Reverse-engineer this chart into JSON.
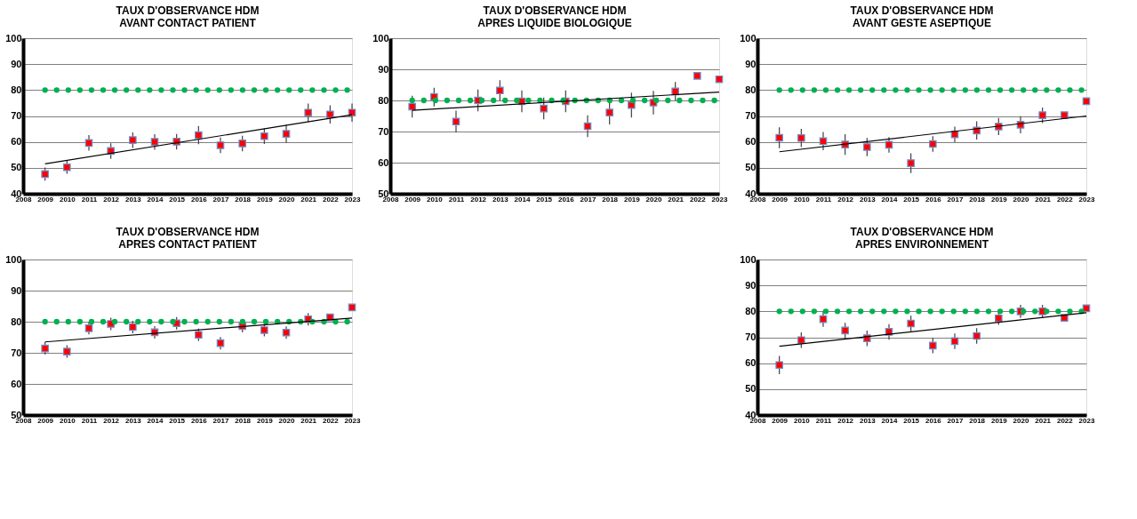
{
  "chart_data": [
    {
      "type": "scatter",
      "title": "TAUX D'OBSERVANCE HDM",
      "subtitle": "AVANT CONTACT PATIENT",
      "x": [
        2009,
        2010,
        2011,
        2012,
        2013,
        2014,
        2015,
        2016,
        2017,
        2018,
        2019,
        2020,
        2021,
        2022,
        2023
      ],
      "xlim": [
        2008,
        2023
      ],
      "xticks": [
        2008,
        2009,
        2010,
        2011,
        2012,
        2013,
        2014,
        2015,
        2016,
        2017,
        2018,
        2019,
        2020,
        2021,
        2022,
        2023
      ],
      "ylim": [
        40,
        100
      ],
      "yticks": [
        40,
        50,
        60,
        70,
        80,
        90,
        100
      ],
      "grid": "y",
      "legend": false,
      "series": [
        {
          "type": "scatter",
          "marker": "square",
          "color": "#ff0000",
          "values": [
            47.6,
            50.2,
            59.6,
            56.5,
            60.7,
            60.0,
            60.1,
            62.6,
            58.7,
            59.4,
            62.2,
            63.1,
            71.3,
            70.6,
            71.3
          ],
          "errors": [
            2.5,
            2.5,
            3,
            3,
            3,
            3,
            3,
            3.5,
            3,
            3,
            3,
            3.5,
            3.5,
            3.5,
            3.5
          ]
        },
        {
          "type": "scatter",
          "marker": "circle",
          "color": "#00b050",
          "x": [
            2009,
            2009.53,
            2010.06,
            2010.59,
            2011.12,
            2011.65,
            2012.18,
            2012.71,
            2013.24,
            2013.77,
            2014.3,
            2014.83,
            2015.36,
            2015.89,
            2016.42,
            2016.95,
            2017.48,
            2018.01,
            2018.54,
            2019.07,
            2019.6,
            2020.13,
            2020.66,
            2021.19,
            2021.72,
            2022.25,
            2022.78
          ],
          "values": [
            80,
            80,
            80,
            80,
            80,
            80,
            80,
            80,
            80,
            80,
            80,
            80,
            80,
            80,
            80,
            80,
            80,
            80,
            80,
            80,
            80,
            80,
            80,
            80,
            80,
            80,
            80
          ]
        },
        {
          "type": "line",
          "color": "#000000",
          "x": [
            2009,
            2023
          ],
          "values": [
            51.5,
            70.5
          ]
        }
      ]
    },
    {
      "type": "scatter",
      "title": "TAUX D'OBSERVANCE HDM",
      "subtitle": "APRES CONTACT PATIENT",
      "x": [
        2009,
        2010,
        2011,
        2012,
        2013,
        2014,
        2015,
        2016,
        2017,
        2018,
        2019,
        2020,
        2021,
        2022,
        2023
      ],
      "xlim": [
        2008,
        2023
      ],
      "xticks": [
        2008,
        2009,
        2010,
        2011,
        2012,
        2013,
        2014,
        2015,
        2016,
        2017,
        2018,
        2019,
        2020,
        2021,
        2022,
        2023
      ],
      "ylim": [
        50,
        100
      ],
      "yticks": [
        50,
        60,
        70,
        80,
        90,
        100
      ],
      "grid": "y",
      "legend": false,
      "series": [
        {
          "type": "scatter",
          "marker": "square",
          "color": "#ff0000",
          "values": [
            71.4,
            70.4,
            77.9,
            79.3,
            78.3,
            76.6,
            79.5,
            75.8,
            73.1,
            78.6,
            77.3,
            76.5,
            80.8,
            81.4,
            84.6
          ],
          "errors": [
            2,
            2,
            2,
            2,
            2,
            2,
            2,
            2,
            2,
            2,
            2,
            2,
            2,
            null,
            null
          ]
        },
        {
          "type": "scatter",
          "marker": "circle",
          "color": "#00b050",
          "x": [
            2009,
            2009.53,
            2010.06,
            2010.59,
            2011.12,
            2011.65,
            2012.18,
            2012.71,
            2013.24,
            2013.77,
            2014.3,
            2014.83,
            2015.36,
            2015.89,
            2016.42,
            2016.95,
            2017.48,
            2018.01,
            2018.54,
            2019.07,
            2019.6,
            2020.13,
            2020.66,
            2021.19,
            2021.72,
            2022.25,
            2022.78
          ],
          "values": [
            80,
            80,
            80,
            80,
            80,
            80,
            80,
            80,
            80,
            80,
            80,
            80,
            80,
            80,
            80,
            80,
            80,
            80,
            80,
            80,
            80,
            80,
            80,
            80,
            80,
            80,
            80
          ]
        },
        {
          "type": "line",
          "color": "#000000",
          "x": [
            2009,
            2023
          ],
          "values": [
            73.5,
            81.2
          ]
        }
      ]
    },
    {
      "type": "scatter",
      "title": "TAUX D'OBSERVANCE HDM",
      "subtitle": "APRES LIQUIDE BIOLOGIQUE",
      "x": [
        2009,
        2010,
        2011,
        2012,
        2013,
        2014,
        2015,
        2016,
        2017,
        2018,
        2019,
        2020,
        2021,
        2022,
        2023
      ],
      "xlim": [
        2008,
        2023
      ],
      "xticks": [
        2008,
        2009,
        2010,
        2011,
        2012,
        2013,
        2014,
        2015,
        2016,
        2017,
        2018,
        2019,
        2020,
        2021,
        2022,
        2023
      ],
      "ylim": [
        50,
        100
      ],
      "yticks": [
        50,
        60,
        70,
        80,
        90,
        100
      ],
      "grid": "y",
      "legend": false,
      "series": [
        {
          "type": "scatter",
          "marker": "square",
          "color": "#ff0000",
          "values": [
            78.0,
            81.1,
            73.2,
            80.0,
            83.2,
            79.7,
            77.4,
            79.7,
            71.7,
            76.1,
            78.5,
            79.3,
            82.9,
            87.9,
            86.8
          ],
          "errors": [
            3.5,
            3,
            3.5,
            3.5,
            3.3,
            3.5,
            3.5,
            3.5,
            3.5,
            3.8,
            4,
            3.8,
            3,
            null,
            null
          ]
        },
        {
          "type": "scatter",
          "marker": "circle",
          "color": "#00b050",
          "x": [
            2009,
            2009.53,
            2010.06,
            2010.59,
            2011.12,
            2011.65,
            2012.18,
            2012.71,
            2013.24,
            2013.77,
            2014.3,
            2014.83,
            2015.36,
            2015.89,
            2016.42,
            2016.95,
            2017.48,
            2018.01,
            2018.54,
            2019.07,
            2019.6,
            2020.13,
            2020.66,
            2021.19,
            2021.72,
            2022.25,
            2022.78
          ],
          "values": [
            80,
            80,
            80,
            80,
            80,
            80,
            80,
            80,
            80,
            80,
            80,
            80,
            80,
            80,
            80,
            80,
            80,
            80,
            80,
            80,
            80,
            80,
            80,
            80,
            80,
            80,
            80
          ]
        },
        {
          "type": "line",
          "color": "#000000",
          "x": [
            2009,
            2023
          ],
          "values": [
            76.8,
            82.7
          ]
        }
      ]
    },
    {
      "type": "scatter",
      "title": "TAUX D'OBSERVANCE HDM",
      "subtitle": "AVANT GESTE ASEPTIQUE",
      "x": [
        2009,
        2010,
        2011,
        2012,
        2013,
        2014,
        2015,
        2016,
        2017,
        2018,
        2019,
        2020,
        2021,
        2022,
        2023
      ],
      "xlim": [
        2008,
        2023
      ],
      "xticks": [
        2008,
        2009,
        2010,
        2011,
        2012,
        2013,
        2014,
        2015,
        2016,
        2017,
        2018,
        2019,
        2020,
        2021,
        2022,
        2023
      ],
      "ylim": [
        40,
        100
      ],
      "yticks": [
        40,
        50,
        60,
        70,
        80,
        90,
        100
      ],
      "grid": "y",
      "legend": false,
      "series": [
        {
          "type": "scatter",
          "marker": "square",
          "color": "#ff0000",
          "values": [
            61.6,
            61.5,
            60.3,
            59.0,
            58.0,
            58.9,
            51.8,
            59.2,
            62.9,
            64.4,
            65.9,
            66.6,
            70.3,
            70.3,
            75.7
          ],
          "errors": [
            4,
            3.5,
            3.5,
            4,
            3.5,
            3,
            3.8,
            3,
            3,
            3.5,
            3.3,
            3.3,
            3,
            null,
            null
          ]
        },
        {
          "type": "scatter",
          "marker": "circle",
          "color": "#00b050",
          "x": [
            2009,
            2009.53,
            2010.06,
            2010.59,
            2011.12,
            2011.65,
            2012.18,
            2012.71,
            2013.24,
            2013.77,
            2014.3,
            2014.83,
            2015.36,
            2015.89,
            2016.42,
            2016.95,
            2017.48,
            2018.01,
            2018.54,
            2019.07,
            2019.6,
            2020.13,
            2020.66,
            2021.19,
            2021.72,
            2022.25,
            2022.78
          ],
          "values": [
            80,
            80,
            80,
            80,
            80,
            80,
            80,
            80,
            80,
            80,
            80,
            80,
            80,
            80,
            80,
            80,
            80,
            80,
            80,
            80,
            80,
            80,
            80,
            80,
            80,
            80,
            80
          ]
        },
        {
          "type": "line",
          "color": "#000000",
          "x": [
            2009,
            2023
          ],
          "values": [
            56.2,
            70.0
          ]
        }
      ]
    },
    {
      "type": "scatter",
      "title": "TAUX D'OBSERVANCE HDM",
      "subtitle": "APRES ENVIRONNEMENT",
      "x": [
        2009,
        2010,
        2011,
        2012,
        2013,
        2014,
        2015,
        2016,
        2017,
        2018,
        2019,
        2020,
        2021,
        2022,
        2023
      ],
      "xlim": [
        2008,
        2023
      ],
      "xticks": [
        2008,
        2009,
        2010,
        2011,
        2012,
        2013,
        2014,
        2015,
        2016,
        2017,
        2018,
        2019,
        2020,
        2021,
        2022,
        2023
      ],
      "ylim": [
        40,
        100
      ],
      "yticks": [
        40,
        50,
        60,
        70,
        80,
        90,
        100
      ],
      "grid": "y",
      "legend": false,
      "series": [
        {
          "type": "scatter",
          "marker": "square",
          "color": "#ff0000",
          "values": [
            59.3,
            68.9,
            77.0,
            72.6,
            69.6,
            72.1,
            75.3,
            66.8,
            68.5,
            70.5,
            77.3,
            80.0,
            80.0,
            77.5,
            81.2
          ],
          "errors": [
            3.5,
            3,
            3,
            3,
            3,
            3,
            3,
            3,
            3,
            3,
            2.5,
            2.5,
            2.5,
            null,
            null
          ]
        },
        {
          "type": "scatter",
          "marker": "circle",
          "color": "#00b050",
          "x": [
            2009,
            2009.53,
            2010.06,
            2010.59,
            2011.12,
            2011.65,
            2012.18,
            2012.71,
            2013.24,
            2013.77,
            2014.3,
            2014.83,
            2015.36,
            2015.89,
            2016.42,
            2016.95,
            2017.48,
            2018.01,
            2018.54,
            2019.07,
            2019.6,
            2020.13,
            2020.66,
            2021.19,
            2021.72,
            2022.25,
            2022.78
          ],
          "values": [
            80,
            80,
            80,
            80,
            80,
            80,
            80,
            80,
            80,
            80,
            80,
            80,
            80,
            80,
            80,
            80,
            80,
            80,
            80,
            80,
            80,
            80,
            80,
            80,
            80,
            80,
            80
          ]
        },
        {
          "type": "line",
          "color": "#000000",
          "x": [
            2009,
            2023
          ],
          "values": [
            66.5,
            79.5
          ]
        }
      ]
    }
  ]
}
